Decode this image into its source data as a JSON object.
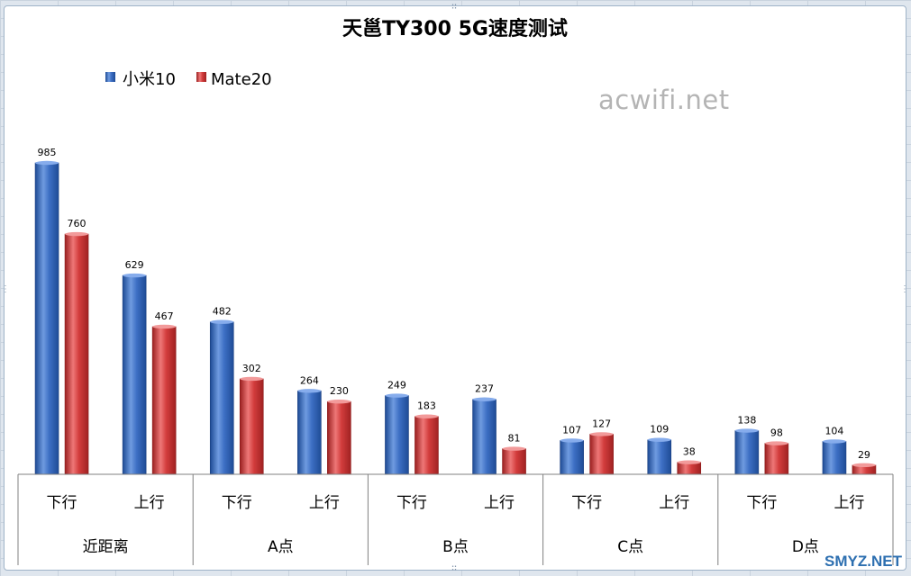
{
  "watermark": "acwifi.net",
  "site_mark": "SMYZ.NET",
  "colors": {
    "series1": "#3d6fc4",
    "series2": "#d23c3c",
    "axis": "#808080"
  },
  "chart_data": {
    "type": "bar",
    "title": "天邕TY300 5G速度测试",
    "legend_position": "top-left",
    "grid": false,
    "ylim": [
      0,
      985
    ],
    "groups": [
      "近距离",
      "A点",
      "B点",
      "C点",
      "D点"
    ],
    "categories": [
      "下行",
      "上行",
      "下行",
      "上行",
      "下行",
      "上行",
      "下行",
      "上行",
      "下行",
      "上行"
    ],
    "series": [
      {
        "name": "小米10",
        "values": [
          985,
          629,
          482,
          264,
          249,
          237,
          107,
          109,
          138,
          104
        ]
      },
      {
        "name": "Mate20",
        "values": [
          760,
          467,
          302,
          230,
          183,
          81,
          127,
          38,
          98,
          29
        ]
      }
    ]
  }
}
